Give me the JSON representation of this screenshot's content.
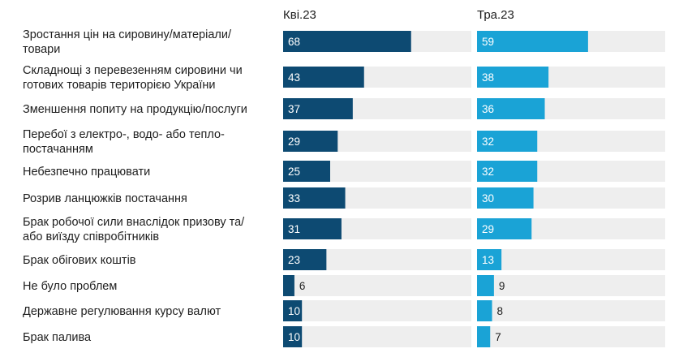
{
  "chart_data": {
    "type": "bar",
    "orientation": "horizontal",
    "grid": false,
    "legend": "none",
    "xlim": [
      0,
      100
    ],
    "categories": [
      "Зростання цін на сировину/матеріали/ товари",
      "Складнощі з перевезенням сировини чи готових товарів територією України",
      "Зменшення попиту на продукцію/послуги",
      "Перебої з електро-, водо- або тепло- постачанням",
      "Небезпечно працювати",
      "Розрив ланцюжків постачання",
      "Брак робочої сили внаслідок призову та/ або виїзду співробітників",
      "Брак обігових коштів",
      "Не було проблем",
      "Державне регулювання курсу валют",
      "Брак палива"
    ],
    "category_lines": [
      [
        "Зростання цін на сировину/матеріали/",
        "товари"
      ],
      [
        "Складнощі з перевезенням сировини чи",
        "готових товарів територією України"
      ],
      [
        "Зменшення попиту на продукцію/послуги"
      ],
      [
        "Перебої з електро-, водо- або тепло-",
        "постачанням"
      ],
      [
        "Небезпечно працювати"
      ],
      [
        "Розрив ланцюжків постачання"
      ],
      [
        "Брак робочої сили внаслідок призову та/",
        "або виїзду співробітників"
      ],
      [
        "Брак обігових коштів"
      ],
      [
        "Не було проблем"
      ],
      [
        "Державне регулювання курсу валют"
      ],
      [
        "Брак палива"
      ]
    ],
    "series": [
      {
        "name": "Кві.23",
        "color": "#0d4a72",
        "values": [
          68,
          43,
          37,
          29,
          25,
          33,
          31,
          23,
          6,
          10,
          10
        ]
      },
      {
        "name": "Тра.23",
        "color": "#1aa3d6",
        "values": [
          59,
          38,
          36,
          32,
          32,
          30,
          29,
          13,
          9,
          8,
          7
        ]
      }
    ],
    "track_color": "#eeeeee"
  }
}
